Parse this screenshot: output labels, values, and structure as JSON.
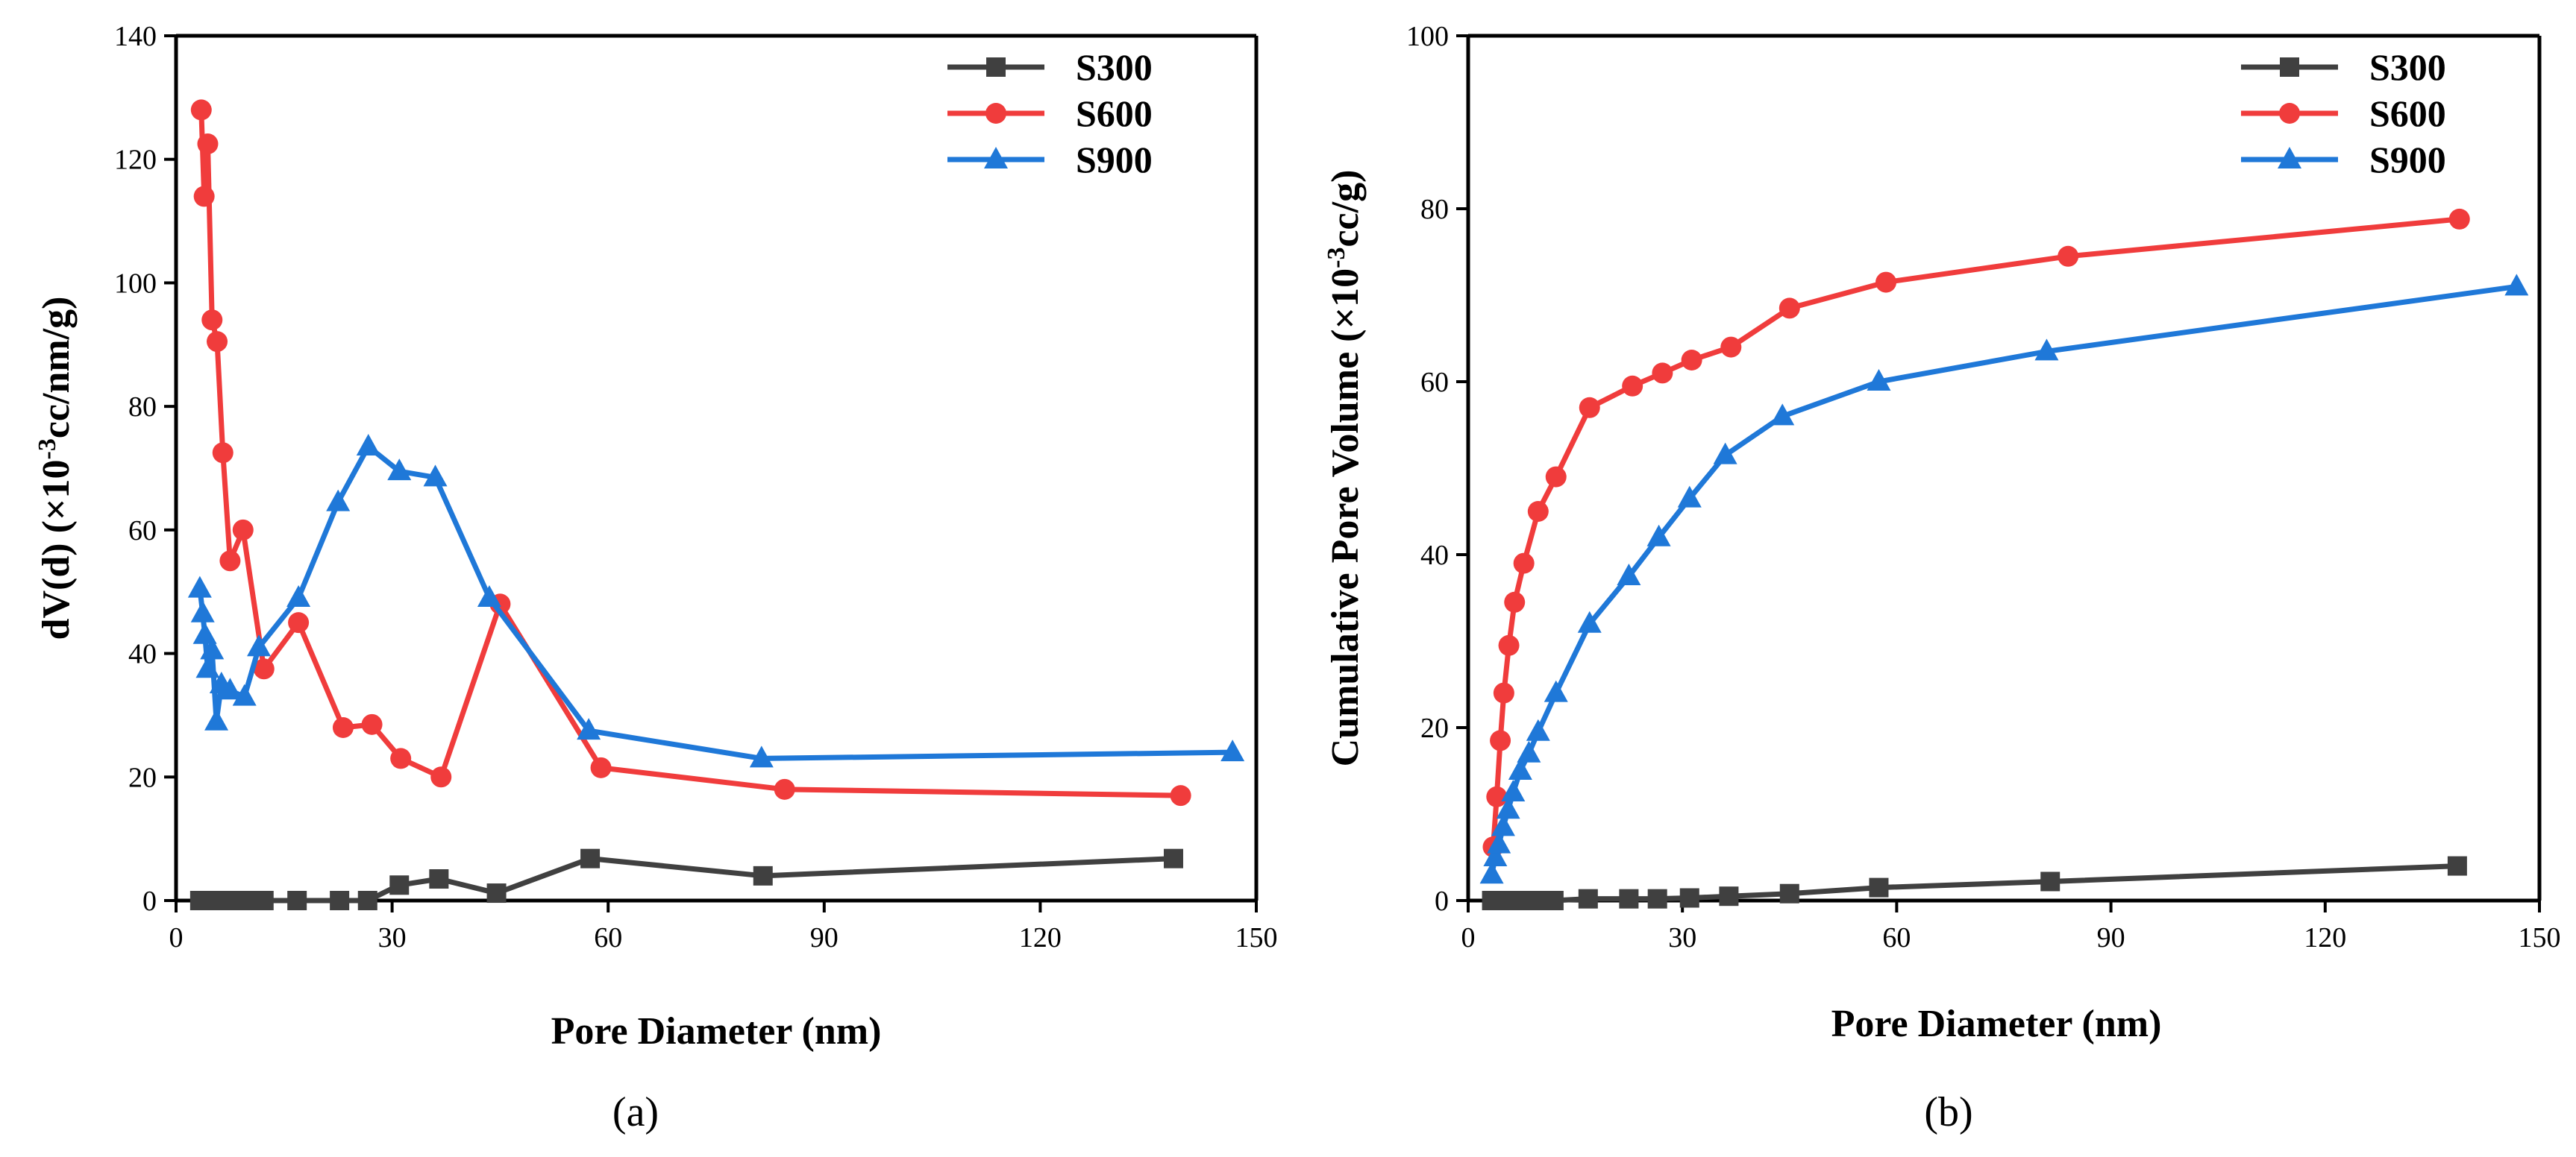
{
  "chart_data": [
    {
      "type": "line",
      "panel_label": "(a)",
      "xlabel": "Pore Diameter (nm)",
      "ylabel_prefix": "dV(d) (×10",
      "ylabel_sup": "-3",
      "ylabel_suffix": "cc/nm/g)",
      "xlim": [
        0,
        150
      ],
      "ylim": [
        0,
        140
      ],
      "xticks": [
        "0",
        "30",
        "60",
        "90",
        "120",
        "150"
      ],
      "yticks": [
        "0",
        "20",
        "40",
        "60",
        "80",
        "100",
        "120",
        "140"
      ],
      "legend_position": "top-right",
      "series": [
        {
          "name": "S300",
          "color": "#404040",
          "marker": "square",
          "x": [
            3.3,
            4.0,
            4.5,
            5.0,
            5.6,
            6.3,
            7.5,
            9.0,
            10.5,
            12.2,
            16.8,
            22.7,
            26.6,
            31.0,
            36.5,
            44.5,
            57.5,
            81.5,
            138.5
          ],
          "y": [
            0,
            0,
            0,
            0,
            0,
            0,
            0,
            0,
            0,
            0,
            0,
            0,
            0,
            2.5,
            3.5,
            1.2,
            6.8,
            4.0,
            6.8
          ]
        },
        {
          "name": "S600",
          "color": "#f03c3c",
          "marker": "circle",
          "x": [
            3.5,
            3.9,
            4.4,
            5.0,
            5.7,
            6.5,
            7.5,
            9.3,
            12.2,
            17.0,
            23.2,
            27.2,
            31.2,
            36.8,
            45.0,
            59.0,
            84.5,
            139.5
          ],
          "y": [
            128,
            114,
            122.5,
            94,
            90.5,
            72.5,
            55,
            60,
            37.5,
            45,
            28,
            28.5,
            23,
            20,
            48,
            21.5,
            18,
            17
          ]
        },
        {
          "name": "S900",
          "color": "#1f78d8",
          "marker": "triangle",
          "x": [
            3.3,
            3.7,
            4.0,
            4.4,
            5.0,
            5.6,
            6.3,
            7.5,
            9.5,
            11.5,
            17.0,
            22.5,
            26.7,
            31.0,
            36.0,
            43.5,
            57.3,
            81.3,
            146.7
          ],
          "y": [
            50.5,
            46.5,
            43,
            37.5,
            40.5,
            29,
            35,
            34,
            33,
            41,
            49,
            64.5,
            73.5,
            69.5,
            68.5,
            49,
            27.5,
            23,
            24
          ]
        }
      ]
    },
    {
      "type": "line",
      "panel_label": "(b)",
      "xlabel": "Pore Diameter (nm)",
      "ylabel_prefix": "Cumulative Pore Volume (×10",
      "ylabel_sup": "-3",
      "ylabel_suffix": "cc/g)",
      "xlim": [
        0,
        150
      ],
      "ylim": [
        0,
        100
      ],
      "xticks": [
        "0",
        "30",
        "60",
        "90",
        "120",
        "150"
      ],
      "yticks": [
        "0",
        "20",
        "40",
        "60",
        "80",
        "100"
      ],
      "legend_position": "top-right",
      "series": [
        {
          "name": "S300",
          "color": "#404040",
          "marker": "square",
          "x": [
            3.3,
            4.0,
            4.5,
            5.0,
            5.6,
            6.3,
            7.0,
            8.0,
            9.2,
            10.5,
            12.0,
            16.8,
            22.5,
            26.5,
            31.0,
            36.5,
            45.0,
            57.5,
            81.5,
            138.5
          ],
          "y": [
            0,
            0,
            0,
            0,
            0,
            0,
            0,
            0,
            0,
            0,
            0,
            0.2,
            0.2,
            0.2,
            0.3,
            0.5,
            0.8,
            1.5,
            2.2,
            4.0
          ]
        },
        {
          "name": "S600",
          "color": "#f03c3c",
          "marker": "circle",
          "x": [
            3.5,
            4.0,
            4.5,
            5.0,
            5.7,
            6.5,
            7.8,
            9.8,
            12.3,
            17.0,
            23.0,
            27.2,
            31.3,
            36.8,
            45.0,
            58.5,
            84.0,
            138.8
          ],
          "y": [
            6.2,
            12,
            18.5,
            24,
            29.5,
            34.5,
            39,
            45,
            49,
            57,
            59.5,
            61,
            62.5,
            64,
            68.5,
            71.5,
            74.5,
            78.8
          ]
        },
        {
          "name": "S900",
          "color": "#1f78d8",
          "marker": "triangle",
          "x": [
            3.3,
            3.8,
            4.3,
            4.9,
            5.6,
            6.3,
            7.3,
            8.5,
            9.8,
            12.3,
            17.0,
            22.5,
            26.7,
            31.0,
            36.0,
            44.0,
            57.5,
            81.0,
            146.8
          ],
          "y": [
            3.0,
            5.0,
            6.5,
            8.5,
            10.5,
            12.5,
            15,
            17,
            19.5,
            24,
            32,
            37.5,
            42,
            46.5,
            51.5,
            56,
            60,
            63.5,
            71
          ]
        }
      ]
    }
  ]
}
